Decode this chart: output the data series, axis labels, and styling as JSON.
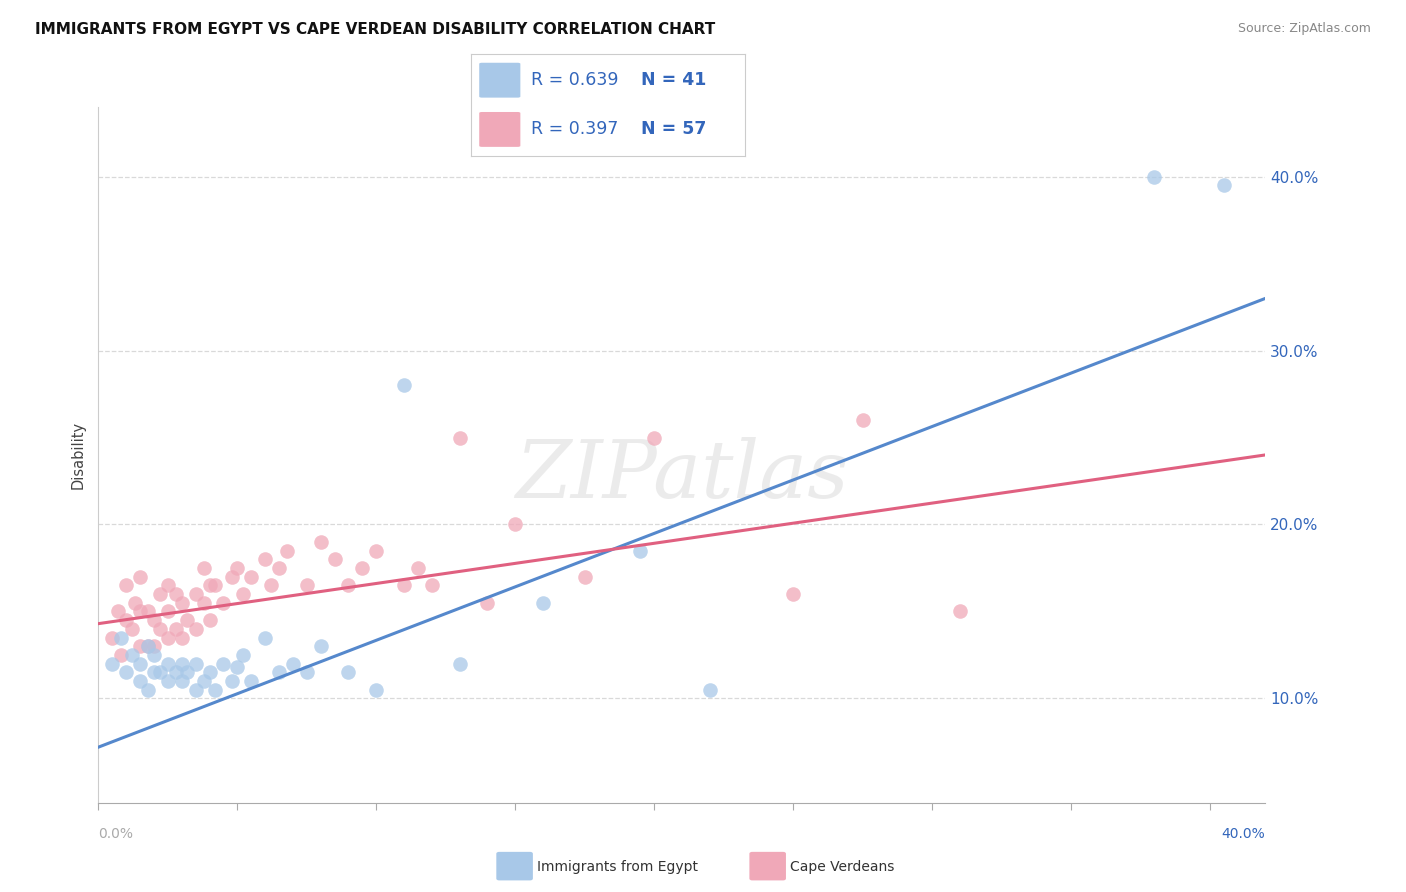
{
  "title": "IMMIGRANTS FROM EGYPT VS CAPE VERDEAN DISABILITY CORRELATION CHART",
  "source": "Source: ZipAtlas.com",
  "ylabel": "Disability",
  "xlim": [
    0.0,
    0.42
  ],
  "ylim": [
    0.04,
    0.44
  ],
  "ytick_labels": [
    "10.0%",
    "20.0%",
    "30.0%",
    "40.0%"
  ],
  "ytick_values": [
    0.1,
    0.2,
    0.3,
    0.4
  ],
  "xtick_values": [
    0.0,
    0.05,
    0.1,
    0.15,
    0.2,
    0.25,
    0.3,
    0.35,
    0.4
  ],
  "grid_color": "#d0d0d0",
  "background_color": "#ffffff",
  "watermark": "ZIPatlas",
  "egypt_color": "#a8c8e8",
  "egypt_line_color": "#5588cc",
  "capeverde_color": "#f0a8b8",
  "capeverde_line_color": "#e06080",
  "legend_text_color": "#3366bb",
  "legend_R1": "R = 0.639",
  "legend_N1": "N = 41",
  "legend_R2": "R = 0.397",
  "legend_N2": "N = 57",
  "egypt_scatter_x": [
    0.005,
    0.008,
    0.01,
    0.012,
    0.015,
    0.015,
    0.018,
    0.018,
    0.02,
    0.02,
    0.022,
    0.025,
    0.025,
    0.028,
    0.03,
    0.03,
    0.032,
    0.035,
    0.035,
    0.038,
    0.04,
    0.042,
    0.045,
    0.048,
    0.05,
    0.052,
    0.055,
    0.06,
    0.065,
    0.07,
    0.075,
    0.08,
    0.09,
    0.1,
    0.11,
    0.13,
    0.16,
    0.195,
    0.22,
    0.38,
    0.405
  ],
  "egypt_scatter_y": [
    0.12,
    0.135,
    0.115,
    0.125,
    0.11,
    0.12,
    0.105,
    0.13,
    0.115,
    0.125,
    0.115,
    0.11,
    0.12,
    0.115,
    0.11,
    0.12,
    0.115,
    0.105,
    0.12,
    0.11,
    0.115,
    0.105,
    0.12,
    0.11,
    0.118,
    0.125,
    0.11,
    0.135,
    0.115,
    0.12,
    0.115,
    0.13,
    0.115,
    0.105,
    0.28,
    0.12,
    0.155,
    0.185,
    0.105,
    0.4,
    0.395
  ],
  "capeverde_scatter_x": [
    0.005,
    0.007,
    0.008,
    0.01,
    0.01,
    0.012,
    0.013,
    0.015,
    0.015,
    0.015,
    0.018,
    0.018,
    0.02,
    0.02,
    0.022,
    0.022,
    0.025,
    0.025,
    0.025,
    0.028,
    0.028,
    0.03,
    0.03,
    0.032,
    0.035,
    0.035,
    0.038,
    0.038,
    0.04,
    0.04,
    0.042,
    0.045,
    0.048,
    0.05,
    0.052,
    0.055,
    0.06,
    0.062,
    0.065,
    0.068,
    0.075,
    0.08,
    0.085,
    0.09,
    0.095,
    0.1,
    0.11,
    0.115,
    0.12,
    0.13,
    0.14,
    0.15,
    0.175,
    0.2,
    0.25,
    0.275,
    0.31
  ],
  "capeverde_scatter_y": [
    0.135,
    0.15,
    0.125,
    0.145,
    0.165,
    0.14,
    0.155,
    0.13,
    0.15,
    0.17,
    0.13,
    0.15,
    0.13,
    0.145,
    0.14,
    0.16,
    0.135,
    0.15,
    0.165,
    0.14,
    0.16,
    0.135,
    0.155,
    0.145,
    0.16,
    0.14,
    0.175,
    0.155,
    0.145,
    0.165,
    0.165,
    0.155,
    0.17,
    0.175,
    0.16,
    0.17,
    0.18,
    0.165,
    0.175,
    0.185,
    0.165,
    0.19,
    0.18,
    0.165,
    0.175,
    0.185,
    0.165,
    0.175,
    0.165,
    0.25,
    0.155,
    0.2,
    0.17,
    0.25,
    0.16,
    0.26,
    0.15
  ],
  "egypt_line_x": [
    0.0,
    0.42
  ],
  "egypt_line_y": [
    0.072,
    0.33
  ],
  "capeverde_line_x": [
    0.0,
    0.42
  ],
  "capeverde_line_y": [
    0.143,
    0.24
  ]
}
